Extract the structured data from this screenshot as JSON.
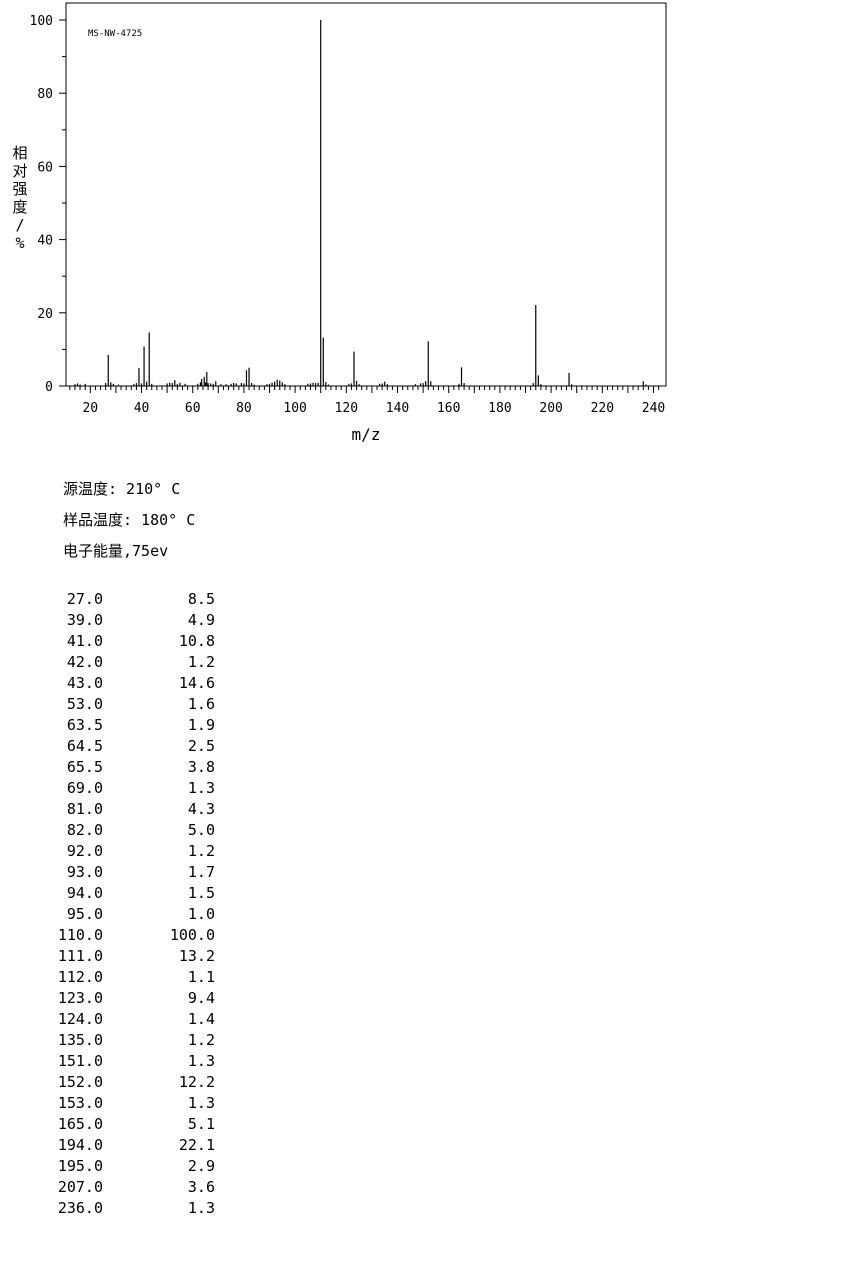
{
  "chart_data": {
    "type": "bar",
    "title": "MS-NW-4725",
    "xlabel": "m/z",
    "ylabel": "相对强度/%",
    "xlim": [
      10,
      244
    ],
    "ylim": [
      0,
      100
    ],
    "xticks": [
      20,
      40,
      60,
      80,
      100,
      120,
      140,
      160,
      180,
      200,
      220,
      240
    ],
    "yticks": [
      0,
      20,
      40,
      60,
      80,
      100
    ],
    "grid": false,
    "peaks": [
      {
        "mz": 14,
        "i": 0.5
      },
      {
        "mz": 15,
        "i": 0.7
      },
      {
        "mz": 16,
        "i": 0.4
      },
      {
        "mz": 18,
        "i": 0.6
      },
      {
        "mz": 26,
        "i": 0.8
      },
      {
        "mz": 27,
        "i": 8.5
      },
      {
        "mz": 28,
        "i": 1.0
      },
      {
        "mz": 29,
        "i": 0.6
      },
      {
        "mz": 31,
        "i": 0.4
      },
      {
        "mz": 37,
        "i": 0.5
      },
      {
        "mz": 38,
        "i": 0.8
      },
      {
        "mz": 39,
        "i": 4.9
      },
      {
        "mz": 40,
        "i": 0.7
      },
      {
        "mz": 41,
        "i": 10.8
      },
      {
        "mz": 42,
        "i": 1.2
      },
      {
        "mz": 43,
        "i": 14.6
      },
      {
        "mz": 44,
        "i": 0.6
      },
      {
        "mz": 50,
        "i": 0.7
      },
      {
        "mz": 51,
        "i": 0.9
      },
      {
        "mz": 52,
        "i": 0.8
      },
      {
        "mz": 53,
        "i": 1.6
      },
      {
        "mz": 54,
        "i": 0.5
      },
      {
        "mz": 55,
        "i": 0.9
      },
      {
        "mz": 57,
        "i": 0.6
      },
      {
        "mz": 62,
        "i": 0.6
      },
      {
        "mz": 63,
        "i": 1.0
      },
      {
        "mz": 63.5,
        "i": 1.9
      },
      {
        "mz": 64.5,
        "i": 2.5
      },
      {
        "mz": 65,
        "i": 1.0
      },
      {
        "mz": 65.5,
        "i": 3.8
      },
      {
        "mz": 66,
        "i": 0.8
      },
      {
        "mz": 67,
        "i": 0.7
      },
      {
        "mz": 68,
        "i": 0.6
      },
      {
        "mz": 69,
        "i": 1.3
      },
      {
        "mz": 71,
        "i": 0.5
      },
      {
        "mz": 73,
        "i": 0.5
      },
      {
        "mz": 75,
        "i": 0.6
      },
      {
        "mz": 76,
        "i": 0.8
      },
      {
        "mz": 77,
        "i": 0.7
      },
      {
        "mz": 79,
        "i": 0.8
      },
      {
        "mz": 80,
        "i": 0.7
      },
      {
        "mz": 81,
        "i": 4.3
      },
      {
        "mz": 82,
        "i": 5.0
      },
      {
        "mz": 83,
        "i": 0.8
      },
      {
        "mz": 84,
        "i": 0.4
      },
      {
        "mz": 89,
        "i": 0.5
      },
      {
        "mz": 90,
        "i": 0.6
      },
      {
        "mz": 91,
        "i": 0.9
      },
      {
        "mz": 92,
        "i": 1.2
      },
      {
        "mz": 93,
        "i": 1.7
      },
      {
        "mz": 94,
        "i": 1.5
      },
      {
        "mz": 95,
        "i": 1.0
      },
      {
        "mz": 96,
        "i": 0.5
      },
      {
        "mz": 105,
        "i": 0.6
      },
      {
        "mz": 106,
        "i": 0.7
      },
      {
        "mz": 107,
        "i": 0.9
      },
      {
        "mz": 108,
        "i": 0.8
      },
      {
        "mz": 109,
        "i": 0.9
      },
      {
        "mz": 110,
        "i": 100.0
      },
      {
        "mz": 111,
        "i": 13.2
      },
      {
        "mz": 112,
        "i": 1.1
      },
      {
        "mz": 113,
        "i": 0.4
      },
      {
        "mz": 121,
        "i": 0.6
      },
      {
        "mz": 122,
        "i": 0.7
      },
      {
        "mz": 123,
        "i": 9.4
      },
      {
        "mz": 124,
        "i": 1.4
      },
      {
        "mz": 125,
        "i": 0.5
      },
      {
        "mz": 133,
        "i": 0.6
      },
      {
        "mz": 134,
        "i": 0.7
      },
      {
        "mz": 135,
        "i": 1.2
      },
      {
        "mz": 136,
        "i": 0.5
      },
      {
        "mz": 147,
        "i": 0.5
      },
      {
        "mz": 149,
        "i": 0.7
      },
      {
        "mz": 150,
        "i": 0.8
      },
      {
        "mz": 151,
        "i": 1.3
      },
      {
        "mz": 152,
        "i": 12.2
      },
      {
        "mz": 153,
        "i": 1.3
      },
      {
        "mz": 164,
        "i": 0.6
      },
      {
        "mz": 165,
        "i": 5.1
      },
      {
        "mz": 166,
        "i": 0.8
      },
      {
        "mz": 193,
        "i": 0.8
      },
      {
        "mz": 194,
        "i": 22.1
      },
      {
        "mz": 195,
        "i": 2.9
      },
      {
        "mz": 196,
        "i": 0.5
      },
      {
        "mz": 207,
        "i": 3.6
      },
      {
        "mz": 208,
        "i": 0.5
      },
      {
        "mz": 236,
        "i": 1.3
      },
      {
        "mz": 237,
        "i": 0.4
      }
    ]
  },
  "conditions": {
    "source_temp": "源温度: 210° C",
    "sample_temp": "样品温度: 180° C",
    "electron_energy": "电子能量,75ev"
  },
  "peak_table": [
    {
      "mz": "27.0",
      "abundance": "8.5"
    },
    {
      "mz": "39.0",
      "abundance": "4.9"
    },
    {
      "mz": "41.0",
      "abundance": "10.8"
    },
    {
      "mz": "42.0",
      "abundance": "1.2"
    },
    {
      "mz": "43.0",
      "abundance": "14.6"
    },
    {
      "mz": "53.0",
      "abundance": "1.6"
    },
    {
      "mz": "63.5",
      "abundance": "1.9"
    },
    {
      "mz": "64.5",
      "abundance": "2.5"
    },
    {
      "mz": "65.5",
      "abundance": "3.8"
    },
    {
      "mz": "69.0",
      "abundance": "1.3"
    },
    {
      "mz": "81.0",
      "abundance": "4.3"
    },
    {
      "mz": "82.0",
      "abundance": "5.0"
    },
    {
      "mz": "92.0",
      "abundance": "1.2"
    },
    {
      "mz": "93.0",
      "abundance": "1.7"
    },
    {
      "mz": "94.0",
      "abundance": "1.5"
    },
    {
      "mz": "95.0",
      "abundance": "1.0"
    },
    {
      "mz": "110.0",
      "abundance": "100.0"
    },
    {
      "mz": "111.0",
      "abundance": "13.2"
    },
    {
      "mz": "112.0",
      "abundance": "1.1"
    },
    {
      "mz": "123.0",
      "abundance": "9.4"
    },
    {
      "mz": "124.0",
      "abundance": "1.4"
    },
    {
      "mz": "135.0",
      "abundance": "1.2"
    },
    {
      "mz": "151.0",
      "abundance": "1.3"
    },
    {
      "mz": "152.0",
      "abundance": "12.2"
    },
    {
      "mz": "153.0",
      "abundance": "1.3"
    },
    {
      "mz": "165.0",
      "abundance": "5.1"
    },
    {
      "mz": "194.0",
      "abundance": "22.1"
    },
    {
      "mz": "195.0",
      "abundance": "2.9"
    },
    {
      "mz": "207.0",
      "abundance": "3.6"
    },
    {
      "mz": "236.0",
      "abundance": "1.3"
    }
  ]
}
